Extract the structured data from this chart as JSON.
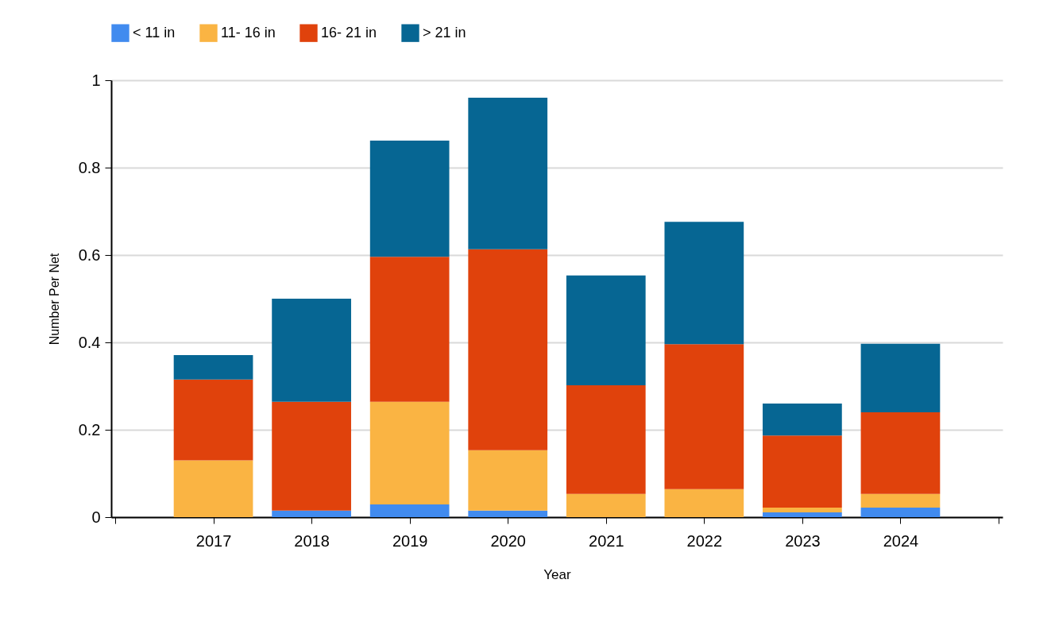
{
  "chart_data": {
    "type": "bar",
    "stacked": true,
    "xlabel": "Year",
    "ylabel": "Number Per Net",
    "x": [
      2017,
      2018,
      2019,
      2020,
      2021,
      2022,
      2023,
      2024
    ],
    "xlim": [
      2016,
      2025
    ],
    "xticks": [
      {
        "value": 2016,
        "label": null
      },
      2017,
      2018,
      2019,
      2020,
      2021,
      2022,
      2023,
      2024,
      {
        "value": 2025,
        "label": null
      }
    ],
    "ylim": [
      0,
      1
    ],
    "yticks": [
      0,
      0.2,
      0.4,
      0.6,
      0.8,
      1
    ],
    "grid": "y",
    "legend": "top",
    "series": [
      {
        "name": "< 11 in",
        "color": "#418bef",
        "values": [
          0,
          0.015,
          0.029,
          0.015,
          0,
          0,
          0.011,
          0.022
        ]
      },
      {
        "name": "11- 16 in",
        "color": "#fab443",
        "values": [
          0.13,
          0,
          0.235,
          0.138,
          0.053,
          0.064,
          0.011,
          0.031
        ]
      },
      {
        "name": "16- 21 in",
        "color": "#e0420c",
        "values": [
          0.185,
          0.249,
          0.332,
          0.46,
          0.249,
          0.332,
          0.165,
          0.187
        ]
      },
      {
        "name": "> 21 in",
        "color": "#066693",
        "values": [
          0.056,
          0.236,
          0.266,
          0.347,
          0.251,
          0.28,
          0.073,
          0.157
        ]
      }
    ]
  }
}
